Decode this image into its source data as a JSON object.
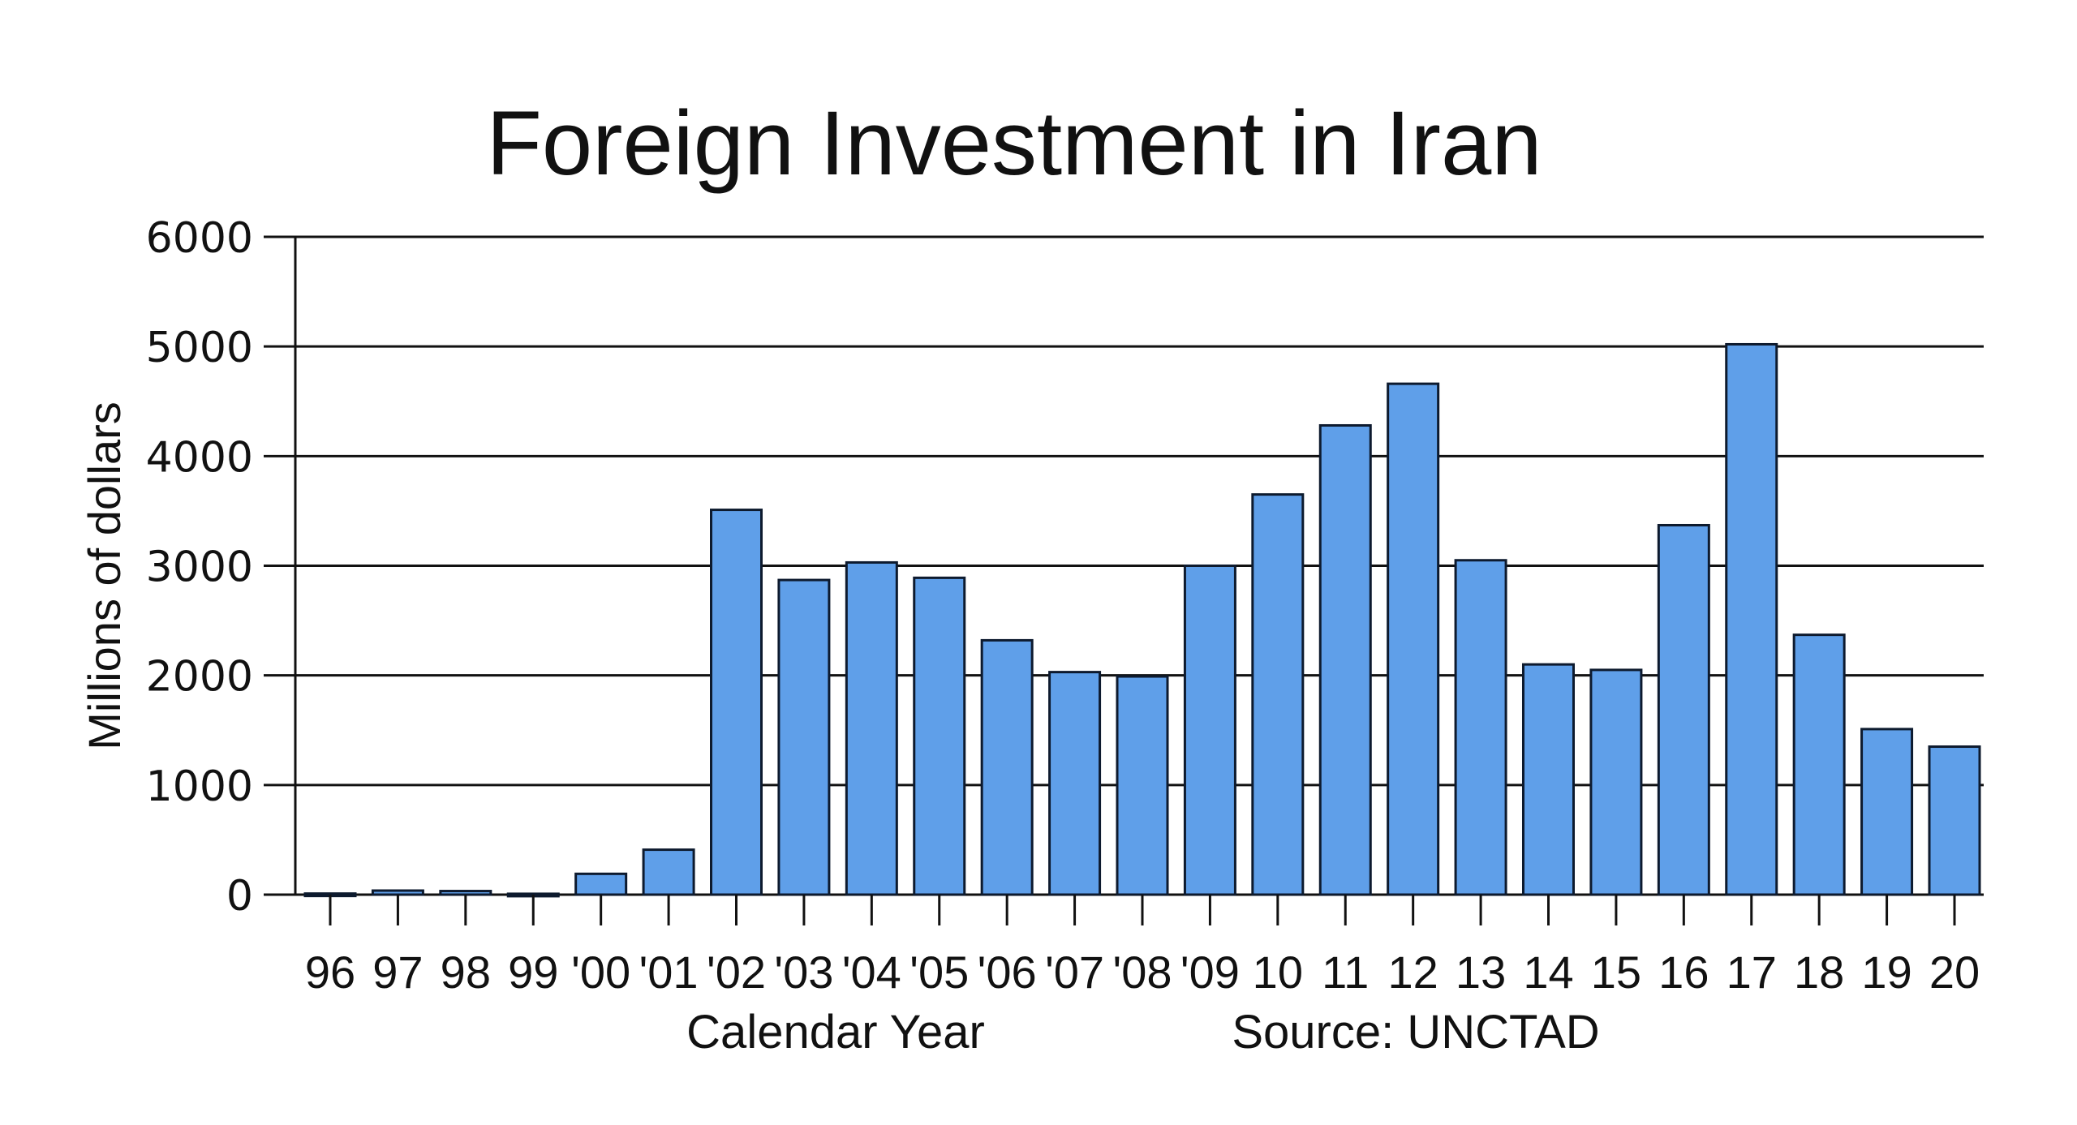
{
  "chart_data": {
    "type": "bar",
    "title": "Foreign Investment in Iran",
    "xlabel": "Calendar Year",
    "ylabel": "Millions of dollars",
    "source_note": "Source: UNCTAD",
    "categories": [
      "96",
      "97",
      "98",
      "99",
      "'00",
      "'01",
      "'02",
      "'03",
      "'04",
      "'05",
      "'06",
      "'07",
      "'08",
      "'09",
      "10",
      "11",
      "12",
      "13",
      "14",
      "15",
      "16",
      "17",
      "18",
      "19",
      "20"
    ],
    "values": [
      10,
      37,
      33,
      8,
      190,
      410,
      3510,
      2870,
      3030,
      2890,
      2320,
      2030,
      1990,
      3000,
      3650,
      4280,
      4660,
      3050,
      2100,
      2050,
      3370,
      5020,
      2370,
      1510,
      1350
    ],
    "yticks": [
      0,
      1000,
      2000,
      3000,
      4000,
      5000,
      6000
    ],
    "ytick_labels": [
      "0",
      "1000",
      "2000",
      "3000",
      "4000",
      "5000",
      "6000"
    ],
    "ylim": [
      0,
      6000
    ],
    "grid": true,
    "legend": null,
    "bar_color": "#5f9fe9",
    "bar_edge_color": "#0d1a2e"
  }
}
